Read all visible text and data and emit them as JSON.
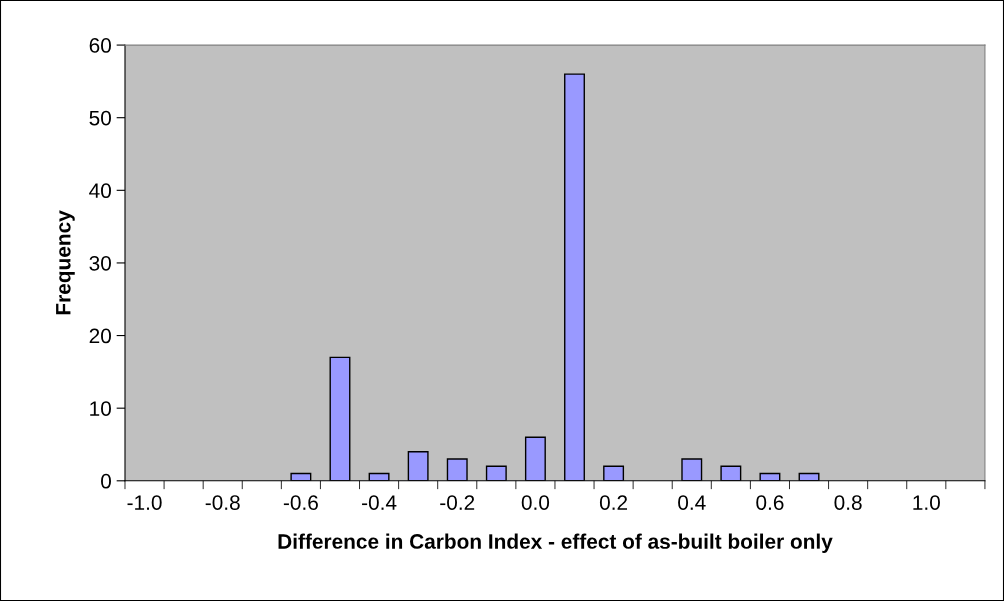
{
  "chart_data": {
    "type": "bar",
    "xlabel": "Difference in Carbon Index - effect of as-built boiler only",
    "ylabel": "Frequency",
    "categories": [
      "-1.0",
      null,
      "-0.8",
      null,
      "-0.6",
      null,
      "-0.4",
      null,
      "-0.2",
      null,
      "0.0",
      null,
      "0.2",
      null,
      "0.4",
      null,
      "0.6",
      null,
      "0.8",
      null,
      "1.0",
      null
    ],
    "values": [
      0,
      0,
      0,
      0,
      1,
      17,
      1,
      4,
      3,
      2,
      6,
      56,
      2,
      0,
      3,
      2,
      1,
      1,
      0,
      0,
      0,
      0
    ],
    "color": "#9999ff",
    "ylim": [
      0,
      60
    ],
    "yticks": [
      0,
      10,
      20,
      30,
      40,
      50,
      60
    ],
    "grid": false,
    "legend": false
  }
}
